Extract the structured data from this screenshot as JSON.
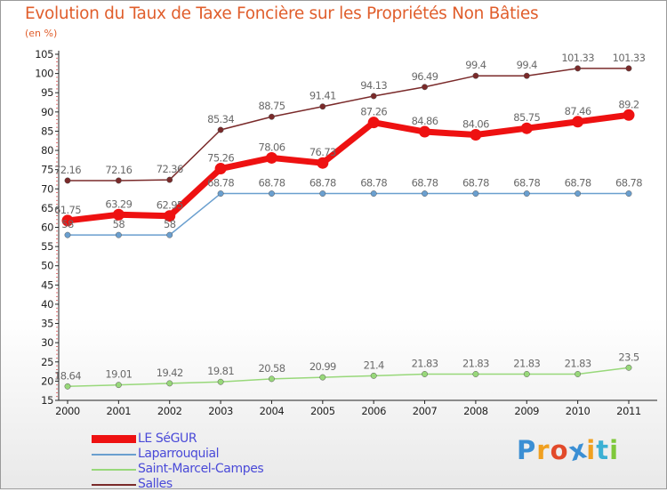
{
  "header": {
    "title": "Evolution du Taux de Taxe Foncière sur les Propriétés Non Bâties",
    "unit": "(en %)"
  },
  "branding": {
    "logo_letters": [
      "P",
      "r",
      "o",
      "x",
      "i",
      "t",
      "i"
    ],
    "logo_colors": [
      "#3b8fd4",
      "#f0a020",
      "#e24a2a",
      "#3b8fd4",
      "#f0a020",
      "#3bb0d4",
      "#7fc83a"
    ]
  },
  "chart_data": {
    "type": "line",
    "title": "Evolution du Taux de Taxe Foncière sur les Propriétés Non Bâties",
    "ylabel": "(en %)",
    "x": [
      "2000",
      "2001",
      "2002",
      "2003",
      "2004",
      "2005",
      "2006",
      "2007",
      "2008",
      "2009",
      "2010",
      "2011"
    ],
    "ylim": [
      15,
      105
    ],
    "yticks": [
      "15",
      "20",
      "25",
      "30",
      "35",
      "40",
      "45",
      "50",
      "55",
      "60",
      "65",
      "70",
      "75",
      "80",
      "85",
      "90",
      "95",
      "100",
      "105"
    ],
    "grid": false,
    "legend_position": "bottom-left",
    "series": [
      {
        "name": "LE SéGUR",
        "color": "#ee1111",
        "values": [
          61.75,
          63.29,
          62.95,
          75.26,
          78.06,
          76.73,
          87.26,
          84.86,
          84.06,
          85.75,
          87.46,
          89.2
        ],
        "labels": [
          "61.75",
          "63.29",
          "62.95",
          "75.26",
          "78.06",
          "76.73",
          "87.26",
          "84.86",
          "84.06",
          "85.75",
          "87.46",
          "89.2"
        ]
      },
      {
        "name": "Laparrouquial",
        "color": "#6a9fcf",
        "values": [
          58,
          58,
          58,
          68.78,
          68.78,
          68.78,
          68.78,
          68.78,
          68.78,
          68.78,
          68.78,
          68.78
        ],
        "labels": [
          "58",
          "58",
          "58",
          "68.78",
          "68.78",
          "68.78",
          "68.78",
          "68.78",
          "68.78",
          "68.78",
          "68.78",
          "68.78"
        ]
      },
      {
        "name": "Saint-Marcel-Campes",
        "color": "#98d87a",
        "values": [
          18.64,
          19.01,
          19.42,
          19.81,
          20.58,
          20.99,
          21.4,
          21.83,
          21.83,
          21.83,
          21.83,
          23.5
        ],
        "labels": [
          "18.64",
          "19.01",
          "19.42",
          "19.81",
          "20.58",
          "20.99",
          "21.4",
          "21.83",
          "21.83",
          "21.83",
          "21.83",
          "23.5"
        ]
      },
      {
        "name": "Salles",
        "color": "#7a2a2a",
        "values": [
          72.16,
          72.16,
          72.36,
          85.34,
          88.75,
          91.41,
          94.13,
          96.49,
          99.4,
          99.4,
          101.33,
          101.33
        ],
        "labels": [
          "72.16",
          "72.16",
          "72.36",
          "85.34",
          "88.75",
          "91.41",
          "94.13",
          "96.49",
          "99.4",
          "99.4",
          "101.33",
          "101.33"
        ]
      }
    ]
  }
}
